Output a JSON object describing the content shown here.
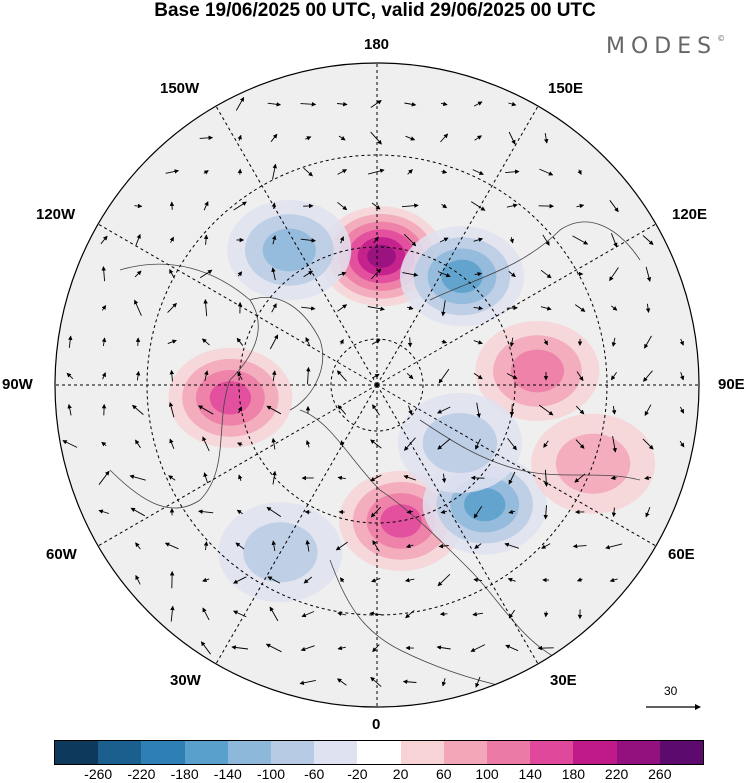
{
  "title": "Base 19/06/2025 00 UTC, valid 29/06/2025 00 UTC",
  "logo": "MODES",
  "logo_mark": "©",
  "longitude_labels": {
    "top": "180",
    "bottom": "0",
    "left": "90W",
    "right": "90E",
    "upper_left_outer": "150W",
    "upper_right_outer": "150E",
    "upper_left_inner": "120W",
    "upper_right_inner": "120E",
    "lower_left_inner": "60W",
    "lower_right_inner": "60E",
    "lower_left_outer": "30W",
    "lower_right_outer": "30E"
  },
  "reference_vector": {
    "label": "30"
  },
  "colorbar": {
    "colors": [
      "#0d3a5c",
      "#1a5f8e",
      "#2e7fb3",
      "#5aa0cc",
      "#8eb8da",
      "#b8cbe4",
      "#dfe2f0",
      "#ffffff",
      "#f7d3d6",
      "#f2a6b7",
      "#ec7aa6",
      "#e0489c",
      "#c01a8a",
      "#92117e",
      "#5c0a6e"
    ],
    "labels": [
      "-260",
      "-220",
      "-180",
      "-140",
      "-100",
      "-60",
      "-20",
      "20",
      "60",
      "100",
      "140",
      "180",
      "220",
      "260"
    ]
  },
  "anomaly_centers": [
    {
      "lat": 62,
      "lon": 178,
      "value": 230
    },
    {
      "lat": 60,
      "lon": 142,
      "value": -150
    },
    {
      "lat": 55,
      "lon": -147,
      "value": -110
    },
    {
      "lat": 58,
      "lon": -85,
      "value": 140
    },
    {
      "lat": 55,
      "lon": 95,
      "value": 110
    },
    {
      "lat": 60,
      "lon": 10,
      "value": 160
    },
    {
      "lat": 55,
      "lon": 42,
      "value": -140
    },
    {
      "lat": 48,
      "lon": -30,
      "value": -90
    },
    {
      "lat": 68,
      "lon": 55,
      "value": -70
    },
    {
      "lat": 40,
      "lon": 70,
      "value": 70
    }
  ]
}
